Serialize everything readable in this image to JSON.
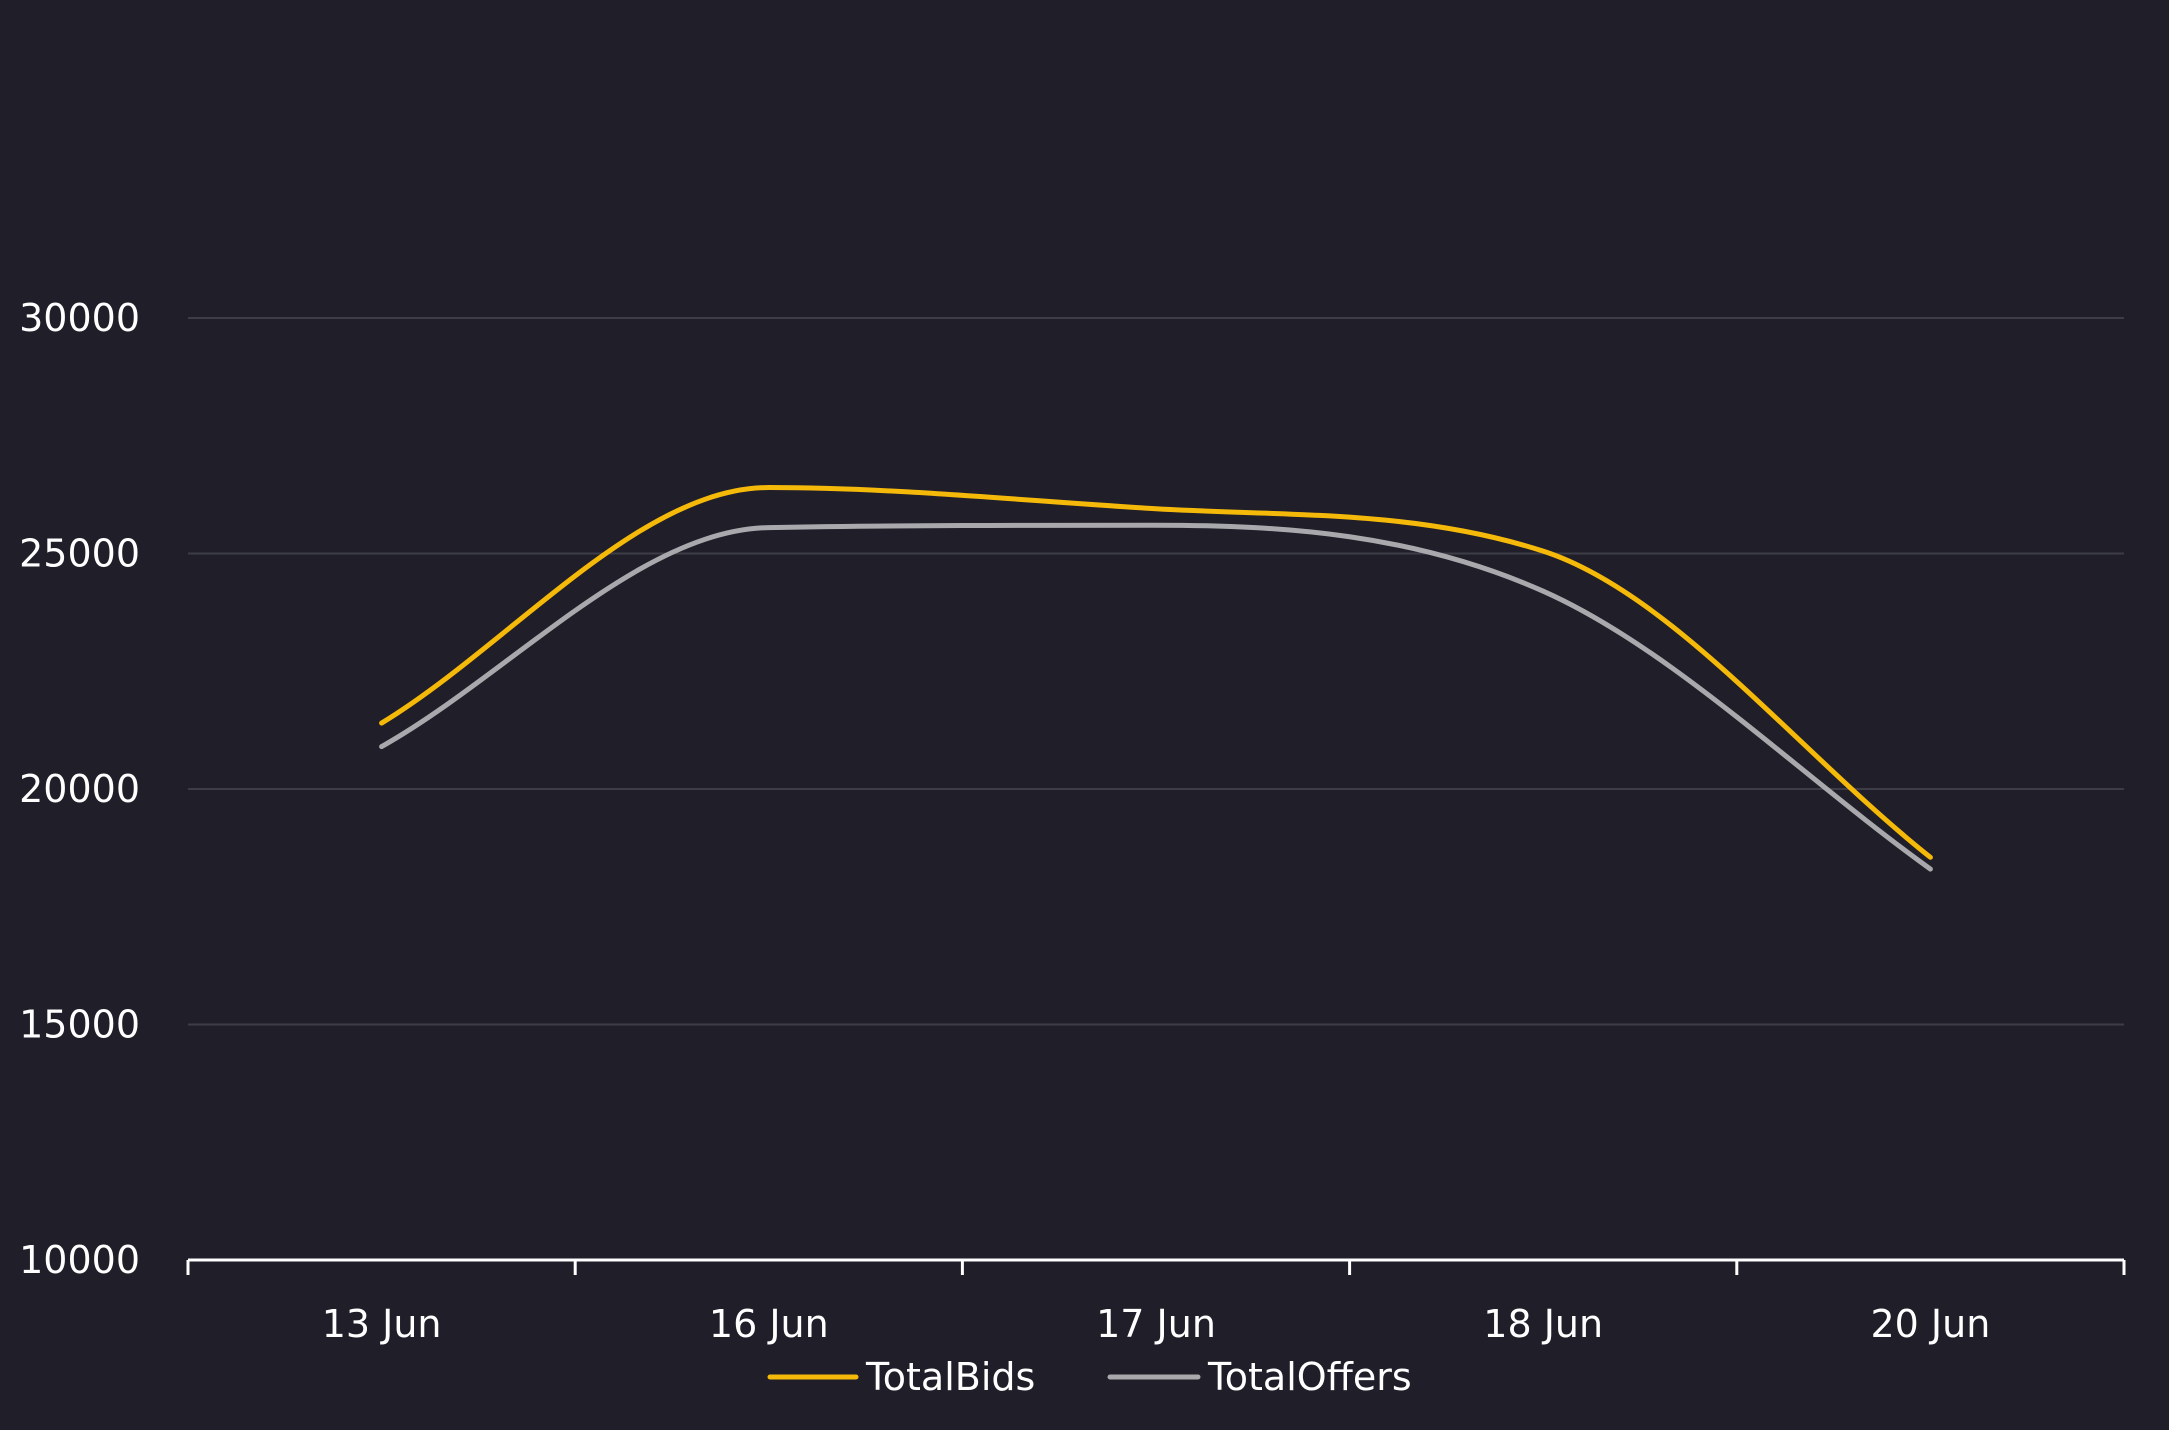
{
  "chart_data": {
    "type": "line",
    "title": "",
    "xlabel": "",
    "ylabel": "",
    "categories": [
      "13 Jun",
      "16 Jun",
      "17 Jun",
      "18 Jun",
      "20 Jun"
    ],
    "series": [
      {
        "name": "TotalBids",
        "color": "#f5b90a",
        "values": [
          21400,
          26400,
          25950,
          25050,
          18550
        ]
      },
      {
        "name": "TotalOffers",
        "color": "#a9a9ad",
        "values": [
          20900,
          25550,
          25600,
          24200,
          18300
        ]
      }
    ],
    "y_ticks": [
      "10000",
      "15000",
      "20000",
      "25000",
      "30000"
    ],
    "ylim": [
      10000,
      30000
    ],
    "grid": true,
    "legend": "bottom-center",
    "colors": {
      "background": "#1f1e29",
      "grid": "#3e3d47",
      "axis": "#ffffff",
      "text": "#ffffff"
    }
  }
}
